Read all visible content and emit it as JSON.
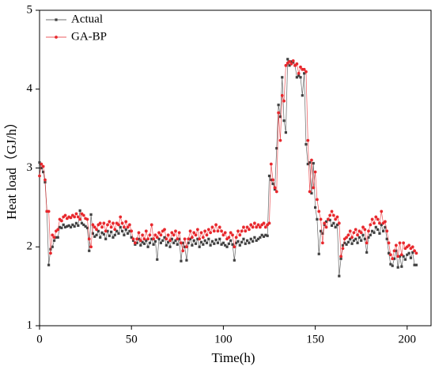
{
  "chart_data": {
    "type": "line",
    "x_label": "Time(h)",
    "y_label": "Heat load（GJ/h）",
    "xlim": [
      0,
      213
    ],
    "ylim": [
      1,
      5
    ],
    "xticks": [
      0,
      50,
      100,
      150,
      200
    ],
    "yticks": [
      1,
      2,
      3,
      4,
      5
    ],
    "legend": "upper left",
    "x": [
      0,
      1,
      2,
      3,
      4,
      5,
      6,
      7,
      8,
      9,
      10,
      11,
      12,
      13,
      14,
      15,
      16,
      17,
      18,
      19,
      20,
      21,
      22,
      23,
      24,
      25,
      26,
      27,
      28,
      29,
      30,
      31,
      32,
      33,
      34,
      35,
      36,
      37,
      38,
      39,
      40,
      41,
      42,
      43,
      44,
      45,
      46,
      47,
      48,
      49,
      50,
      51,
      52,
      53,
      54,
      55,
      56,
      57,
      58,
      59,
      60,
      61,
      62,
      63,
      64,
      65,
      66,
      67,
      68,
      69,
      70,
      71,
      72,
      73,
      74,
      75,
      76,
      77,
      78,
      79,
      80,
      81,
      82,
      83,
      84,
      85,
      86,
      87,
      88,
      89,
      90,
      91,
      92,
      93,
      94,
      95,
      96,
      97,
      98,
      99,
      100,
      101,
      102,
      103,
      104,
      105,
      106,
      107,
      108,
      109,
      110,
      111,
      112,
      113,
      114,
      115,
      116,
      117,
      118,
      119,
      120,
      121,
      122,
      123,
      124,
      125,
      126,
      127,
      128,
      129,
      130,
      131,
      132,
      133,
      134,
      135,
      136,
      137,
      138,
      139,
      140,
      141,
      142,
      143,
      144,
      145,
      146,
      147,
      148,
      149,
      150,
      151,
      152,
      153,
      154,
      155,
      156,
      157,
      158,
      159,
      160,
      161,
      162,
      163,
      164,
      165,
      166,
      167,
      168,
      169,
      170,
      171,
      172,
      173,
      174,
      175,
      176,
      177,
      178,
      179,
      180,
      181,
      182,
      183,
      184,
      185,
      186,
      187,
      188,
      189,
      190,
      191,
      192,
      193,
      194,
      195,
      196,
      197,
      198,
      199,
      200,
      201,
      202,
      203,
      204,
      205
    ],
    "series": [
      {
        "name": "Actual",
        "color": "#404040",
        "marker": "square",
        "values": [
          3.07,
          3.0,
          2.95,
          2.82,
          2.45,
          1.77,
          1.97,
          2.0,
          2.08,
          2.12,
          2.12,
          2.25,
          2.24,
          2.28,
          2.25,
          2.26,
          2.27,
          2.25,
          2.28,
          2.26,
          2.3,
          2.27,
          2.46,
          2.3,
          2.28,
          2.26,
          2.24,
          1.95,
          2.41,
          2.17,
          2.13,
          2.15,
          2.2,
          2.12,
          2.18,
          2.16,
          2.1,
          2.2,
          2.14,
          2.19,
          2.12,
          2.15,
          2.2,
          2.17,
          2.25,
          2.2,
          2.15,
          2.22,
          2.17,
          2.2,
          2.12,
          2.08,
          2.03,
          2.05,
          2.1,
          2.02,
          2.06,
          2.04,
          2.08,
          2.0,
          2.05,
          2.1,
          2.03,
          2.07,
          1.84,
          2.1,
          2.05,
          2.08,
          2.12,
          2.02,
          2.06,
          2.0,
          2.1,
          2.05,
          2.08,
          2.03,
          2.1,
          1.82,
          2.05,
          2.0,
          1.83,
          2.05,
          2.1,
          2.02,
          2.08,
          2.04,
          2.1,
          2.0,
          2.06,
          2.03,
          2.08,
          2.05,
          2.1,
          2.02,
          2.07,
          2.04,
          2.09,
          2.05,
          2.1,
          2.03,
          2.05,
          2.02,
          2.0,
          2.04,
          2.08,
          2.03,
          1.83,
          2.05,
          2.07,
          2.02,
          2.06,
          2.1,
          2.04,
          2.08,
          2.05,
          2.1,
          2.07,
          2.12,
          2.08,
          2.1,
          2.12,
          2.15,
          2.13,
          2.15,
          2.14,
          2.9,
          2.85,
          2.8,
          2.73,
          3.25,
          3.8,
          3.65,
          4.15,
          3.6,
          3.45,
          4.38,
          4.3,
          4.35,
          4.34,
          4.3,
          4.15,
          4.17,
          4.15,
          3.92,
          4.2,
          3.3,
          3.05,
          3.07,
          2.68,
          3.06,
          2.5,
          2.35,
          1.91,
          2.2,
          2.17,
          2.28,
          2.32,
          2.35,
          2.34,
          2.27,
          2.3,
          2.25,
          2.28,
          1.63,
          1.85,
          2.02,
          2.05,
          2.03,
          2.06,
          2.1,
          2.04,
          2.08,
          2.1,
          2.05,
          2.12,
          2.08,
          2.15,
          2.1,
          1.93,
          2.12,
          2.15,
          2.2,
          2.18,
          2.25,
          2.22,
          2.17,
          2.28,
          2.2,
          2.25,
          2.1,
          1.92,
          1.78,
          1.76,
          1.85,
          1.95,
          1.74,
          1.88,
          1.75,
          1.88,
          1.84,
          1.9,
          1.92,
          1.86,
          1.93,
          1.77,
          1.77
        ]
      },
      {
        "name": "GA-BP",
        "color": "#e8282d",
        "marker": "circle",
        "values": [
          2.9,
          3.05,
          3.02,
          2.85,
          2.45,
          2.45,
          1.92,
          2.15,
          2.12,
          2.2,
          2.22,
          2.35,
          2.33,
          2.38,
          2.4,
          2.36,
          2.38,
          2.37,
          2.4,
          2.38,
          2.42,
          2.38,
          2.35,
          2.42,
          2.4,
          2.36,
          2.35,
          2.1,
          2.0,
          2.28,
          2.25,
          2.22,
          2.28,
          2.3,
          2.25,
          2.3,
          2.2,
          2.28,
          2.32,
          2.25,
          2.3,
          2.22,
          2.3,
          2.28,
          2.38,
          2.3,
          2.25,
          2.32,
          2.25,
          2.28,
          2.2,
          2.1,
          2.05,
          2.1,
          2.18,
          2.08,
          2.15,
          2.1,
          2.2,
          2.1,
          2.15,
          2.28,
          2.1,
          2.15,
          2.12,
          2.18,
          2.15,
          2.2,
          2.22,
          2.1,
          2.15,
          2.08,
          2.18,
          2.15,
          2.2,
          2.1,
          2.18,
          2.05,
          1.95,
          2.1,
          2.0,
          2.1,
          2.2,
          2.12,
          2.18,
          2.15,
          2.22,
          2.1,
          2.18,
          2.12,
          2.2,
          2.15,
          2.22,
          2.18,
          2.25,
          2.2,
          2.28,
          2.2,
          2.25,
          2.2,
          2.15,
          2.18,
          2.1,
          2.12,
          2.18,
          2.15,
          2.0,
          2.12,
          2.2,
          2.15,
          2.2,
          2.25,
          2.2,
          2.25,
          2.22,
          2.28,
          2.25,
          2.3,
          2.25,
          2.28,
          2.25,
          2.28,
          2.3,
          2.25,
          2.28,
          2.3,
          3.05,
          2.85,
          2.75,
          2.7,
          3.7,
          3.35,
          3.92,
          3.85,
          4.3,
          4.33,
          4.35,
          4.32,
          4.36,
          4.3,
          4.32,
          4.2,
          4.28,
          4.25,
          4.25,
          4.22,
          3.35,
          2.7,
          3.1,
          2.75,
          2.95,
          2.6,
          2.45,
          2.35,
          2.05,
          2.3,
          2.25,
          2.35,
          2.4,
          2.45,
          2.4,
          2.35,
          2.38,
          2.3,
          1.88,
          1.98,
          2.1,
          2.12,
          2.15,
          2.2,
          2.12,
          2.18,
          2.22,
          2.15,
          2.2,
          2.18,
          2.25,
          2.22,
          2.05,
          2.2,
          2.28,
          2.35,
          2.3,
          2.38,
          2.35,
          2.3,
          2.45,
          2.3,
          2.32,
          2.2,
          2.05,
          1.9,
          1.85,
          1.95,
          2.02,
          1.88,
          2.05,
          1.9,
          2.05,
          1.98,
          2.0,
          2.02,
          1.98,
          2.0,
          1.95,
          1.92
        ]
      }
    ]
  }
}
